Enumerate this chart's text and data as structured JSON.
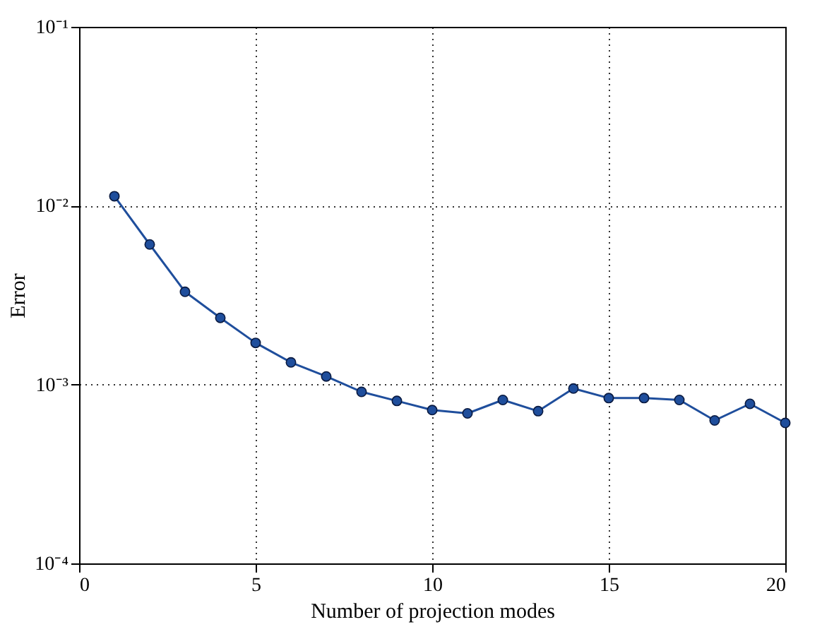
{
  "chart_data": {
    "type": "line",
    "xlabel": "Number of projection modes",
    "ylabel": "Error",
    "x": [
      1,
      2,
      3,
      4,
      5,
      6,
      7,
      8,
      9,
      10,
      11,
      12,
      13,
      14,
      15,
      16,
      17,
      18,
      19,
      20
    ],
    "series": [
      {
        "color": "#1f4e9c",
        "values": [
          0.0113,
          0.00607,
          0.0033,
          0.00236,
          0.00171,
          0.00133,
          0.00111,
          0.00091,
          0.00081,
          0.00072,
          0.00069,
          0.00082,
          0.00071,
          0.00095,
          0.00084,
          0.00084,
          0.00082,
          0.00063,
          0.00078,
          0.00061
        ]
      }
    ],
    "xlim": [
      0,
      20
    ],
    "xticks": [
      0,
      5,
      10,
      15,
      20
    ],
    "ylim": [
      0.0001,
      0.1
    ],
    "yticks": [
      {
        "value": 0.0001,
        "label": "10⁻⁴"
      },
      {
        "value": 0.001,
        "label": "10⁻³"
      },
      {
        "value": 0.01,
        "label": "10⁻²"
      },
      {
        "value": 0.1,
        "label": "10⁻¹"
      }
    ],
    "log": "y",
    "grid": true,
    "marker": "circle",
    "line_style": "solid"
  }
}
